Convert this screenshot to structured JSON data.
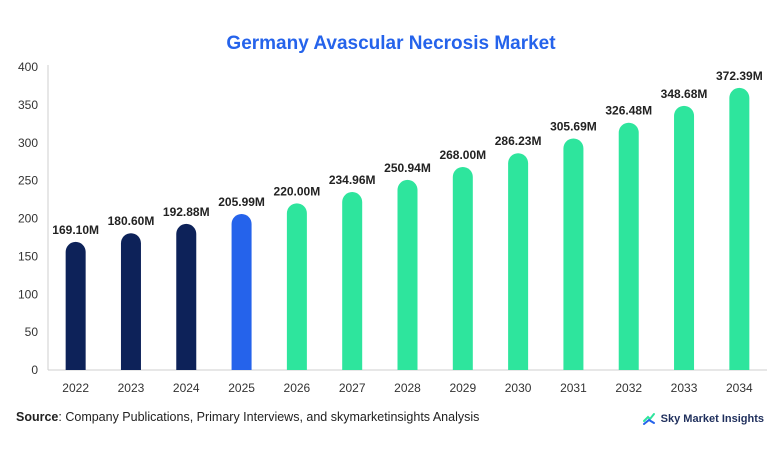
{
  "chart_data": {
    "type": "bar",
    "title": "Germany Avascular Necrosis Market",
    "categories": [
      "2022",
      "2023",
      "2024",
      "2025",
      "2026",
      "2027",
      "2028",
      "2029",
      "2030",
      "2031",
      "2032",
      "2033",
      "2034"
    ],
    "values": [
      169.1,
      180.6,
      192.88,
      205.99,
      220.0,
      234.96,
      250.94,
      268.0,
      286.23,
      305.69,
      326.48,
      348.68,
      372.39
    ],
    "data_labels": [
      "169.10M",
      "180.60M",
      "192.88M",
      "205.99M",
      "220.00M",
      "234.96M",
      "250.94M",
      "268.00M",
      "286.23M",
      "305.69M",
      "326.48M",
      "348.68M",
      "372.39M"
    ],
    "ylim": [
      0,
      400
    ],
    "yticks": [
      0,
      50,
      100,
      150,
      200,
      250,
      300,
      350,
      400
    ],
    "xlabel": "",
    "ylabel": "",
    "grid": false,
    "bar_colors": [
      "#0d2259",
      "#0d2259",
      "#0d2259",
      "#2563eb",
      "#2ee59d",
      "#2ee59d",
      "#2ee59d",
      "#2ee59d",
      "#2ee59d",
      "#2ee59d",
      "#2ee59d",
      "#2ee59d",
      "#2ee59d"
    ]
  },
  "footer": {
    "source_label": "Source",
    "source_text": ": Company Publications, Primary Interviews, and skymarketinsights Analysis",
    "brand_name": "Sky Market Insights"
  }
}
